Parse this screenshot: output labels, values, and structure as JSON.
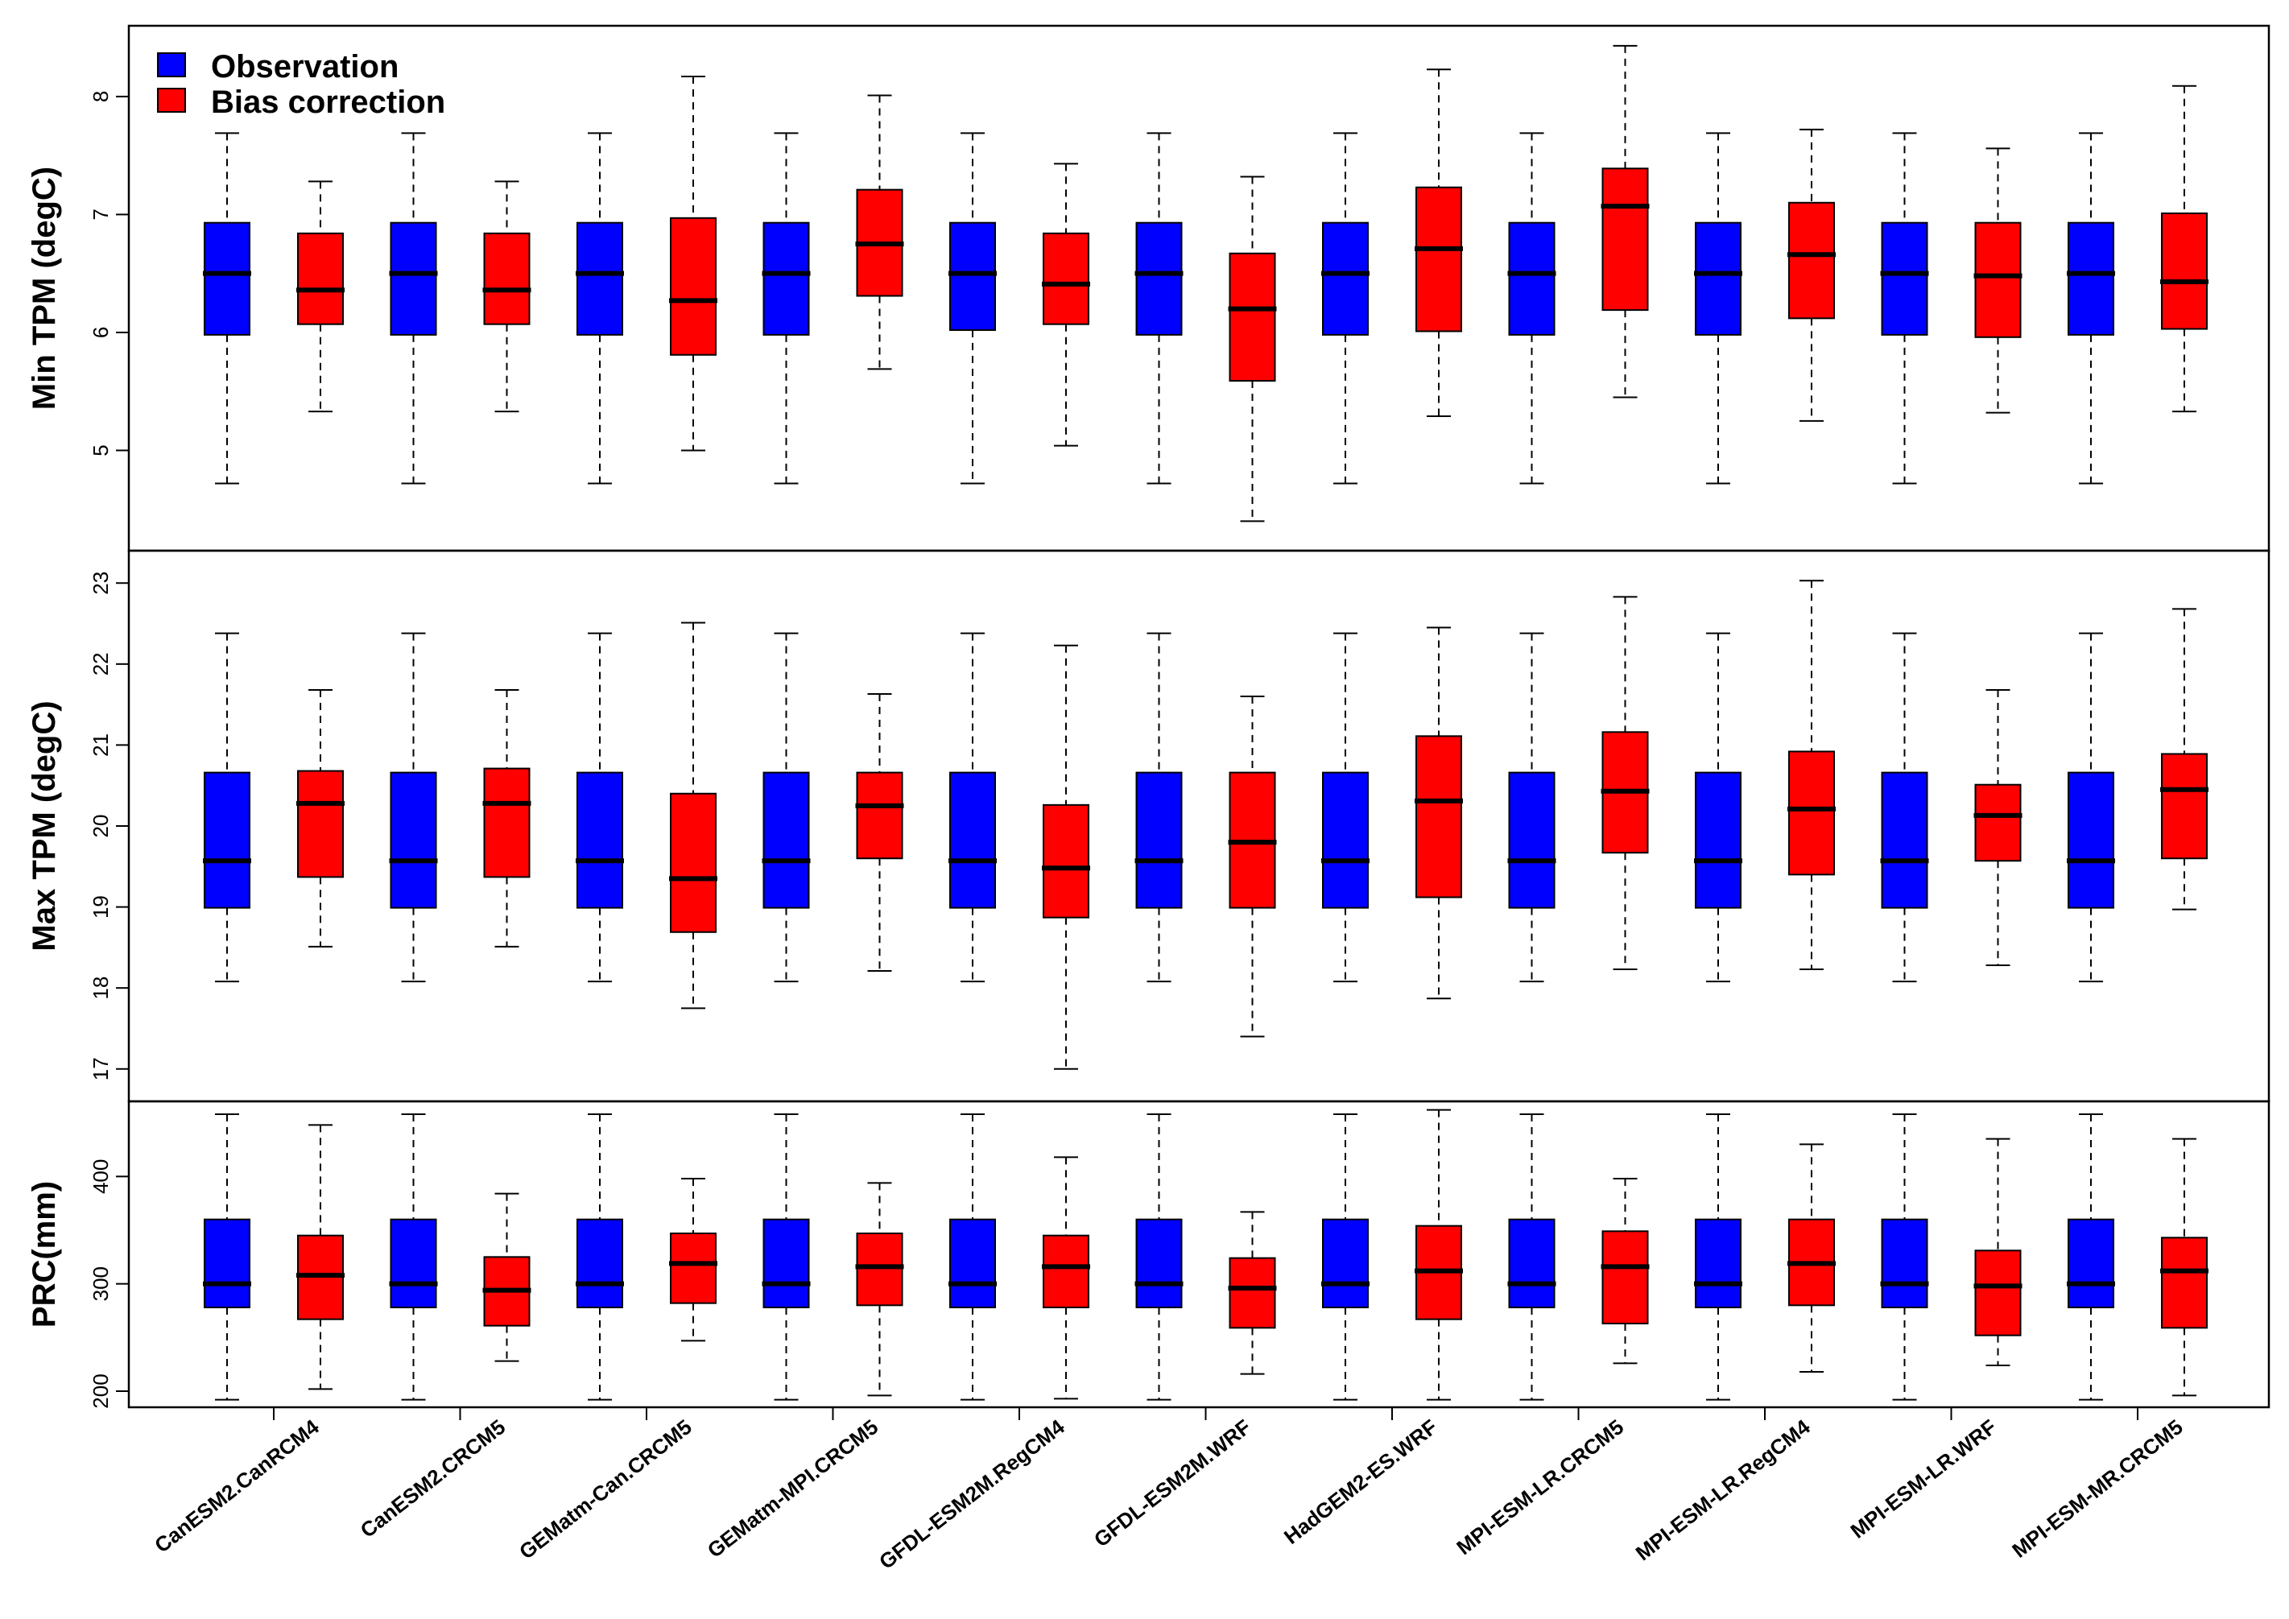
{
  "chart_data": {
    "type": "boxplot",
    "layout": "three stacked panels sharing x categories",
    "legend": {
      "placement": "top-left",
      "entries": [
        {
          "label": "Observation",
          "color": "#0000FF"
        },
        {
          "label": "Bias correction",
          "color": "#FF0000"
        }
      ]
    },
    "categories": [
      "CanESM2.CanRCM4",
      "CanESM2.CRCM5",
      "GEMatm-Can.CRCM5",
      "GEMatm-MPI.CRCM5",
      "GFDL-ESM2M.RegCM4",
      "GFDL-ESM2M.WRF",
      "HadGEM2-ES.WRF",
      "MPI-ESM-LR.CRCM5",
      "MPI-ESM-LR.RegCM4",
      "MPI-ESM-LR.WRF",
      "MPI-ESM-MR.CRCM5"
    ],
    "panels": [
      {
        "ylabel": "Min TPM (degC)",
        "ylim": [
          4.15,
          8.6
        ],
        "yticks": [
          5,
          6,
          7,
          8
        ],
        "observation": [
          [
            4.72,
            5.98,
            6.5,
            6.93,
            7.69
          ],
          [
            4.72,
            5.98,
            6.5,
            6.93,
            7.69
          ],
          [
            4.72,
            5.98,
            6.5,
            6.93,
            7.69
          ],
          [
            4.72,
            5.98,
            6.5,
            6.93,
            7.69
          ],
          [
            4.72,
            6.02,
            6.5,
            6.93,
            7.69
          ],
          [
            4.72,
            5.98,
            6.5,
            6.93,
            7.69
          ],
          [
            4.72,
            5.98,
            6.5,
            6.93,
            7.69
          ],
          [
            4.72,
            5.98,
            6.5,
            6.93,
            7.69
          ],
          [
            4.72,
            5.98,
            6.5,
            6.93,
            7.69
          ],
          [
            4.72,
            5.98,
            6.5,
            6.93,
            7.69
          ],
          [
            4.72,
            5.98,
            6.5,
            6.93,
            7.69
          ]
        ],
        "bias_correction": [
          [
            5.33,
            6.07,
            6.36,
            6.84,
            7.28
          ],
          [
            5.33,
            6.07,
            6.36,
            6.84,
            7.28
          ],
          [
            5.0,
            5.81,
            6.27,
            6.97,
            8.17
          ],
          [
            5.69,
            6.31,
            6.75,
            7.21,
            8.01
          ],
          [
            5.04,
            6.07,
            6.41,
            6.84,
            7.43
          ],
          [
            4.4,
            5.59,
            6.2,
            6.67,
            7.32
          ],
          [
            5.29,
            6.01,
            6.71,
            7.23,
            8.23
          ],
          [
            5.45,
            6.19,
            7.07,
            7.39,
            8.43
          ],
          [
            5.25,
            6.12,
            6.66,
            7.1,
            7.72
          ],
          [
            5.32,
            5.96,
            6.48,
            6.93,
            7.56
          ],
          [
            5.33,
            6.03,
            6.43,
            7.01,
            8.09
          ]
        ]
      },
      {
        "ylabel": "Max TPM (degC)",
        "ylim": [
          16.6,
          23.4
        ],
        "yticks": [
          17,
          18,
          19,
          20,
          21,
          22,
          23
        ],
        "observation": [
          [
            18.08,
            18.99,
            19.57,
            20.66,
            22.38
          ],
          [
            18.08,
            18.99,
            19.57,
            20.66,
            22.38
          ],
          [
            18.08,
            18.99,
            19.57,
            20.66,
            22.38
          ],
          [
            18.08,
            18.99,
            19.57,
            20.66,
            22.38
          ],
          [
            18.08,
            18.99,
            19.57,
            20.66,
            22.38
          ],
          [
            18.08,
            18.99,
            19.57,
            20.66,
            22.38
          ],
          [
            18.08,
            18.99,
            19.57,
            20.66,
            22.38
          ],
          [
            18.08,
            18.99,
            19.57,
            20.66,
            22.38
          ],
          [
            18.08,
            18.99,
            19.57,
            20.66,
            22.38
          ],
          [
            18.08,
            18.99,
            19.57,
            20.66,
            22.38
          ],
          [
            18.08,
            18.99,
            19.57,
            20.66,
            22.38
          ]
        ],
        "bias_correction": [
          [
            18.51,
            19.37,
            20.28,
            20.68,
            21.68
          ],
          [
            18.51,
            19.37,
            20.28,
            20.71,
            21.68
          ],
          [
            17.75,
            18.69,
            19.35,
            20.4,
            22.51
          ],
          [
            18.21,
            19.6,
            20.25,
            20.66,
            21.63
          ],
          [
            17.0,
            18.87,
            19.48,
            20.26,
            22.23
          ],
          [
            17.4,
            18.99,
            19.8,
            20.66,
            21.6
          ],
          [
            17.87,
            19.12,
            20.31,
            21.11,
            22.45
          ],
          [
            18.23,
            19.67,
            20.43,
            21.16,
            22.83
          ],
          [
            18.23,
            19.4,
            20.21,
            20.92,
            23.03
          ],
          [
            18.28,
            19.57,
            20.13,
            20.51,
            21.68
          ],
          [
            18.97,
            19.6,
            20.45,
            20.89,
            22.68
          ]
        ]
      },
      {
        "ylabel": "PRC(mm)",
        "ylim": [
          185,
          470
        ],
        "yticks": [
          200,
          300,
          400
        ],
        "observation": [
          [
            192,
            278,
            300,
            360,
            458
          ],
          [
            192,
            278,
            300,
            360,
            458
          ],
          [
            192,
            278,
            300,
            360,
            458
          ],
          [
            192,
            278,
            300,
            360,
            458
          ],
          [
            192,
            278,
            300,
            360,
            458
          ],
          [
            192,
            278,
            300,
            360,
            458
          ],
          [
            192,
            278,
            300,
            360,
            458
          ],
          [
            192,
            278,
            300,
            360,
            458
          ],
          [
            192,
            278,
            300,
            360,
            458
          ],
          [
            192,
            278,
            300,
            360,
            458
          ],
          [
            192,
            278,
            300,
            360,
            458
          ]
        ],
        "bias_correction": [
          [
            202,
            267,
            308,
            345,
            448
          ],
          [
            228,
            261,
            294,
            325,
            384
          ],
          [
            247,
            282,
            319,
            347,
            398
          ],
          [
            196,
            280,
            316,
            347,
            394
          ],
          [
            193,
            278,
            316,
            345,
            418
          ],
          [
            216,
            259,
            296,
            324,
            367
          ],
          [
            192,
            267,
            312,
            354,
            462
          ],
          [
            226,
            263,
            316,
            349,
            398
          ],
          [
            218,
            280,
            319,
            360,
            430
          ],
          [
            224,
            252,
            298,
            331,
            435
          ],
          [
            196,
            259,
            312,
            343,
            435
          ]
        ]
      }
    ]
  }
}
